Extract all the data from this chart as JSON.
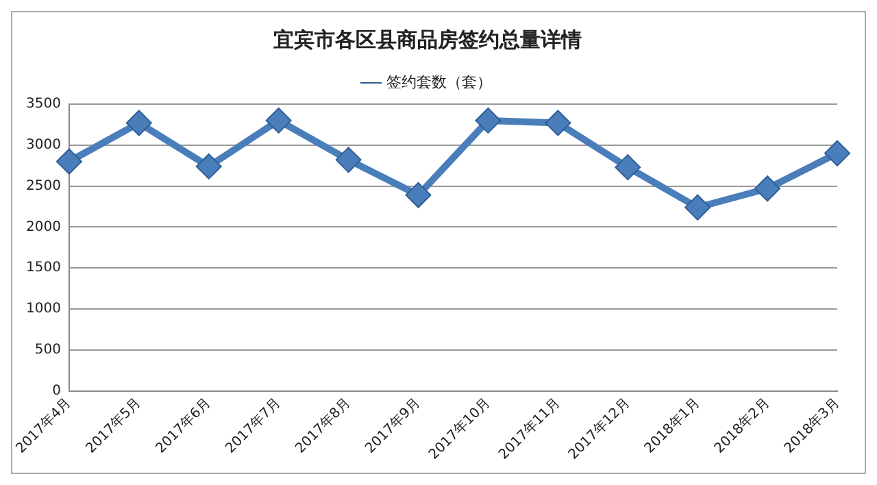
{
  "chart_data": {
    "type": "line",
    "title": "宜宾市各区县商品房签约总量详情",
    "categories": [
      "2017年4月",
      "2017年5月",
      "2017年6月",
      "2017年7月",
      "2017年8月",
      "2017年9月",
      "2017年10月",
      "2017年11月",
      "2017年12月",
      "2018年1月",
      "2018年2月",
      "2018年3月"
    ],
    "series": [
      {
        "name": "签约套数（套）",
        "color": "#4a7ebb",
        "values": [
          2800,
          3270,
          2740,
          3300,
          2820,
          2390,
          3300,
          3270,
          2730,
          2240,
          2470,
          2900
        ]
      }
    ],
    "ylim": [
      0,
      3500
    ],
    "yticks": [
      0,
      500,
      1000,
      1500,
      2000,
      2500,
      3000,
      3500
    ],
    "grid": "y",
    "legend": "top",
    "marker": "diamond",
    "line_style": "solid"
  }
}
